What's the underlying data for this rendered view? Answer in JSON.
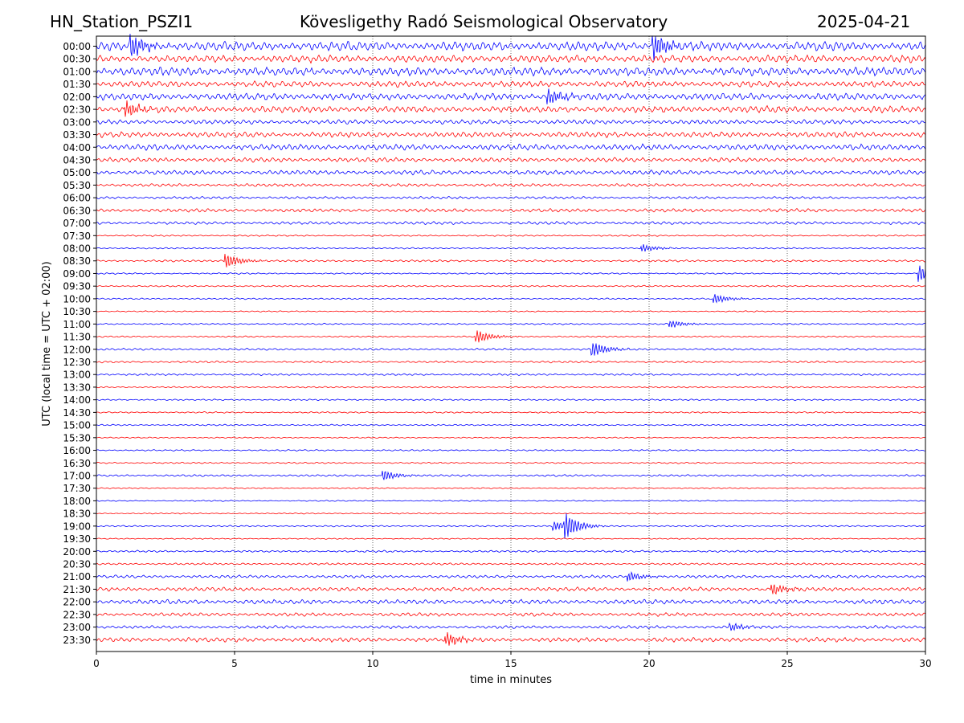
{
  "header": {
    "station": "HN_Station_PSZI1",
    "observatory": "Kövesligethy Radó Seismological Observatory",
    "date": "2025-04-21"
  },
  "chart_data": {
    "type": "line",
    "subtype": "helicorder",
    "xlabel": "time in minutes",
    "ylabel": "UTC (local time = UTC + 02:00)",
    "xlim": [
      0,
      30
    ],
    "x_ticks": [
      0,
      5,
      10,
      15,
      20,
      25,
      30
    ],
    "vertical_gridlines": [
      5,
      10,
      15,
      20,
      25
    ],
    "grid": "vertical dotted",
    "row_labels": [
      "00:00",
      "00:30",
      "01:00",
      "01:30",
      "02:00",
      "02:30",
      "03:00",
      "03:30",
      "04:00",
      "04:30",
      "05:00",
      "05:30",
      "06:00",
      "06:30",
      "07:00",
      "07:30",
      "08:00",
      "08:30",
      "09:00",
      "09:30",
      "10:00",
      "10:30",
      "11:00",
      "11:30",
      "12:00",
      "12:30",
      "13:00",
      "13:30",
      "14:00",
      "14:30",
      "15:00",
      "15:30",
      "16:00",
      "16:30",
      "17:00",
      "17:30",
      "18:00",
      "18:30",
      "19:00",
      "19:30",
      "20:00",
      "20:30",
      "21:00",
      "21:30",
      "22:00",
      "22:30",
      "23:00",
      "23:30"
    ],
    "trace_colors": [
      "#0000ff",
      "#ff0000"
    ],
    "color_pattern": "alternating, starting blue",
    "row_amplitudes": [
      0.9,
      0.75,
      0.85,
      0.6,
      0.7,
      0.65,
      0.45,
      0.55,
      0.6,
      0.45,
      0.45,
      0.3,
      0.25,
      0.35,
      0.3,
      0.15,
      0.15,
      0.2,
      0.15,
      0.15,
      0.15,
      0.12,
      0.15,
      0.15,
      0.2,
      0.2,
      0.2,
      0.15,
      0.15,
      0.15,
      0.15,
      0.12,
      0.15,
      0.15,
      0.2,
      0.12,
      0.12,
      0.12,
      0.15,
      0.12,
      0.2,
      0.2,
      0.3,
      0.4,
      0.45,
      0.35,
      0.3,
      0.45
    ],
    "events": [
      {
        "row": "00:00",
        "minute": 1.3,
        "amplitude": 1.2
      },
      {
        "row": "00:00",
        "minute": 20.2,
        "amplitude": 1.3
      },
      {
        "row": "02:00",
        "minute": 16.4,
        "amplitude": 0.8
      },
      {
        "row": "02:30",
        "minute": 1.1,
        "amplitude": 0.8
      },
      {
        "row": "08:00",
        "minute": 19.8,
        "amplitude": 0.4
      },
      {
        "row": "08:30",
        "minute": 4.7,
        "amplitude": 0.8
      },
      {
        "row": "09:00",
        "minute": 29.8,
        "amplitude": 0.9
      },
      {
        "row": "10:00",
        "minute": 22.4,
        "amplitude": 0.5
      },
      {
        "row": "11:00",
        "minute": 20.8,
        "amplitude": 0.4
      },
      {
        "row": "11:30",
        "minute": 13.8,
        "amplitude": 0.7
      },
      {
        "row": "12:00",
        "minute": 18.0,
        "amplitude": 0.8
      },
      {
        "row": "17:00",
        "minute": 10.4,
        "amplitude": 0.6
      },
      {
        "row": "19:00",
        "minute": 17.0,
        "amplitude": 1.2
      },
      {
        "row": "19:00",
        "minute": 16.6,
        "amplitude": 0.5
      },
      {
        "row": "21:00",
        "minute": 19.3,
        "amplitude": 0.5
      },
      {
        "row": "21:30",
        "minute": 24.5,
        "amplitude": 0.6
      },
      {
        "row": "23:00",
        "minute": 23.0,
        "amplitude": 0.4
      },
      {
        "row": "23:30",
        "minute": 12.7,
        "amplitude": 0.7
      }
    ]
  }
}
